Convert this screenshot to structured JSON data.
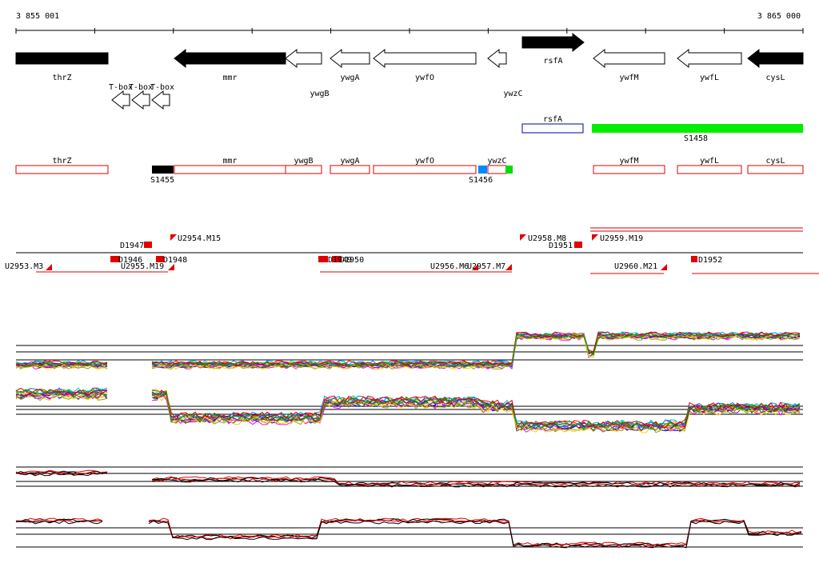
{
  "axis": {
    "start_label": "3 855 001",
    "end_label": "3 865 000"
  },
  "genes": [
    {
      "label": "thrZ",
      "dir": "none",
      "fill": "black",
      "lr": 0
    },
    {
      "label": "mmr",
      "dir": "left",
      "fill": "black",
      "lr": 0
    },
    {
      "label": "ywgB",
      "dir": "left",
      "fill": "white",
      "lr": 1
    },
    {
      "label": "ywgA",
      "dir": "left",
      "fill": "white",
      "lr": 0
    },
    {
      "label": "ywfO",
      "dir": "left",
      "fill": "white",
      "lr": 0
    },
    {
      "label": "ywzC",
      "dir": "left",
      "fill": "white",
      "lr": 1
    },
    {
      "label": "rsfA",
      "dir": "right",
      "fill": "black",
      "lr": 2
    },
    {
      "label": "ywfM",
      "dir": "left",
      "fill": "white",
      "lr": 0
    },
    {
      "label": "ywfL",
      "dir": "left",
      "fill": "white",
      "lr": 0
    },
    {
      "label": "cysL",
      "dir": "left",
      "fill": "black",
      "lr": 0
    }
  ],
  "tboxes": [
    "T-box",
    "T-box",
    "T-box"
  ],
  "rsfA_box": "rsfA",
  "s1458": "S1458",
  "cds_boxes": [
    {
      "label": "thrZ"
    },
    {
      "label": "mmr"
    },
    {
      "label": "ywgB"
    },
    {
      "label": "ywgA"
    },
    {
      "label": "ywfO"
    },
    {
      "label": "ywzC"
    },
    {
      "label": "ywfM"
    },
    {
      "label": "ywfL"
    },
    {
      "label": "cysL"
    }
  ],
  "s_labels": [
    "S1455",
    "S1456"
  ],
  "reg_labels": [
    "U2953.M3",
    "D1947",
    "D1946",
    "U2955.M19",
    "D1948",
    "U2954.M15",
    "D1949",
    "D1950",
    "U2956.M6",
    "U2957.M7",
    "U2958.M8",
    "D1951",
    "U2959.M19",
    "U2960.M21",
    "D1952"
  ],
  "colors": {
    "operon": "#e00000",
    "s1455": "#000000",
    "s1456": "#0088ff",
    "s_green": "#00dd00",
    "s1458": "#00ee00",
    "expr_red": "#e00000",
    "expr_black": "#000000"
  }
}
